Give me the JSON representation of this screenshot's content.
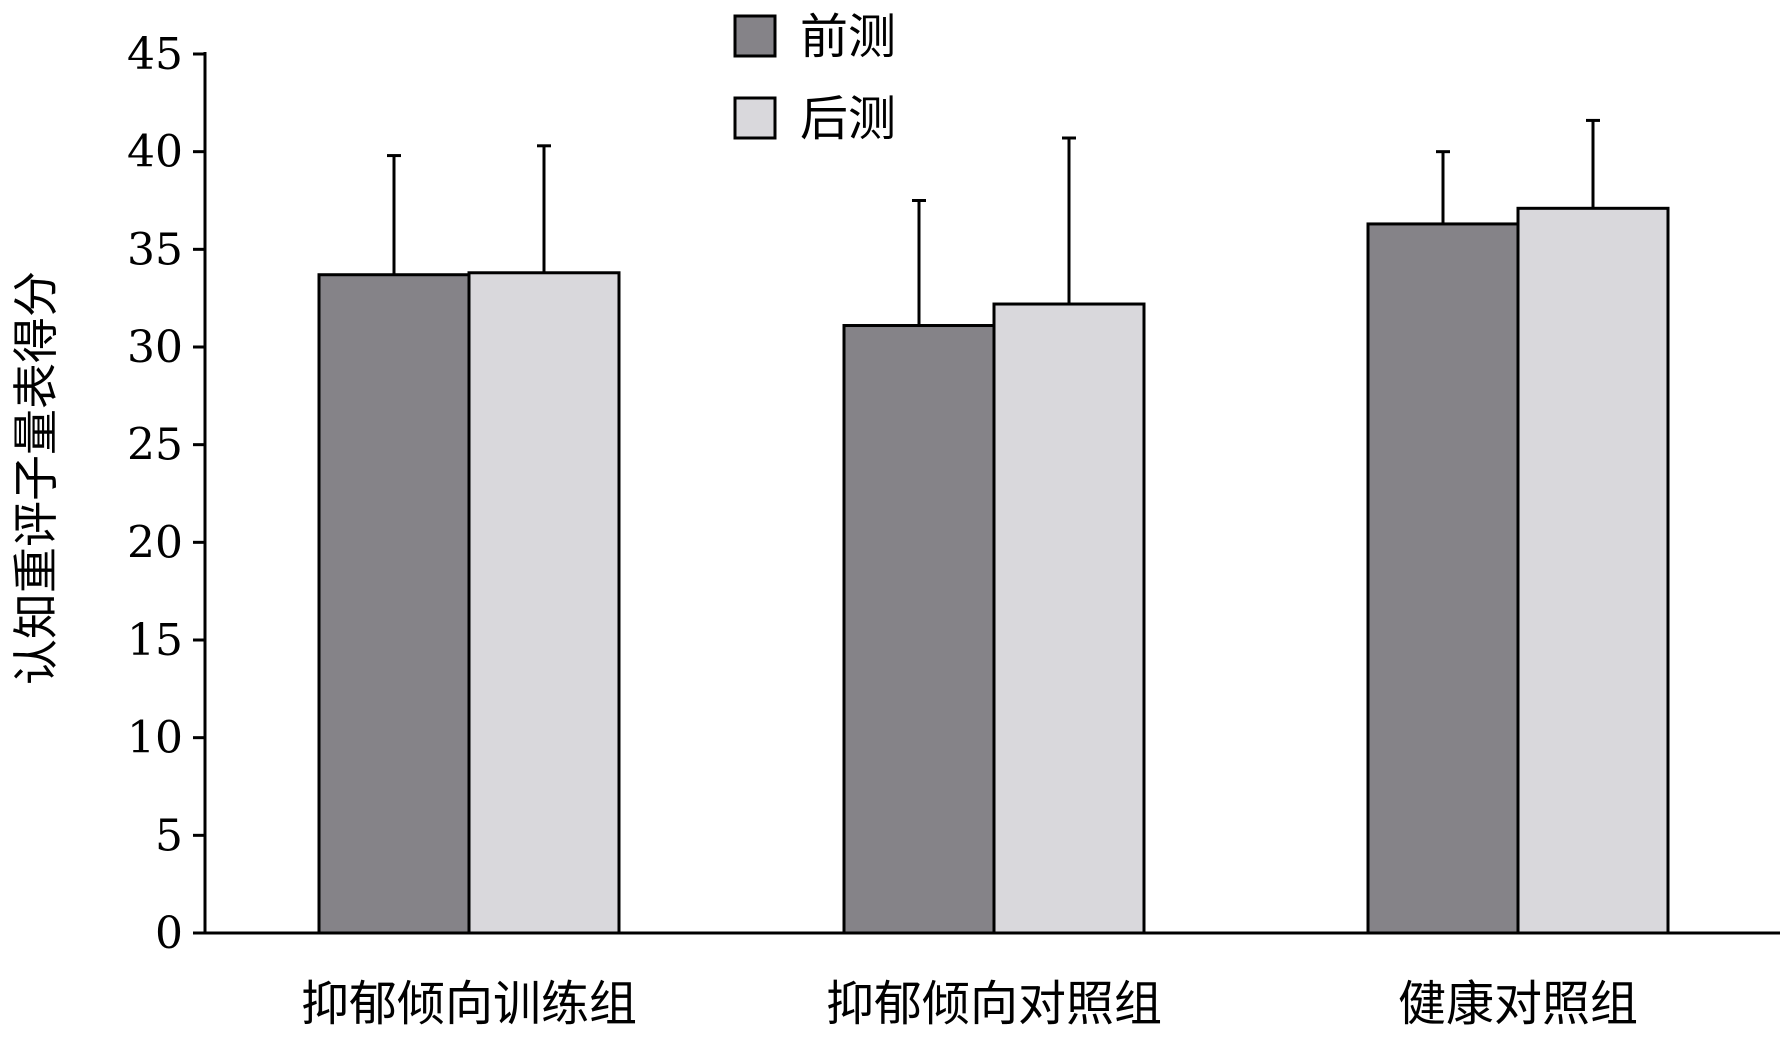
{
  "chart_data": {
    "type": "bar",
    "title": "",
    "xlabel": "",
    "ylabel": "认知重评子量表得分",
    "ylim": [
      0,
      45
    ],
    "yticks": [
      0,
      5,
      10,
      15,
      20,
      25,
      30,
      35,
      40,
      45
    ],
    "grid": false,
    "legend_position": "top-center",
    "categories": [
      "抑郁倾向训练组",
      "抑郁倾向对照组",
      "健康对照组"
    ],
    "series": [
      {
        "name": "前测",
        "color": "#858388",
        "values": [
          33.7,
          31.1,
          36.3
        ],
        "errors": [
          6.1,
          6.4,
          3.7
        ]
      },
      {
        "name": "后测",
        "color": "#d9d8dc",
        "values": [
          33.8,
          32.2,
          37.1
        ],
        "errors": [
          6.5,
          8.5,
          4.5
        ]
      }
    ]
  }
}
